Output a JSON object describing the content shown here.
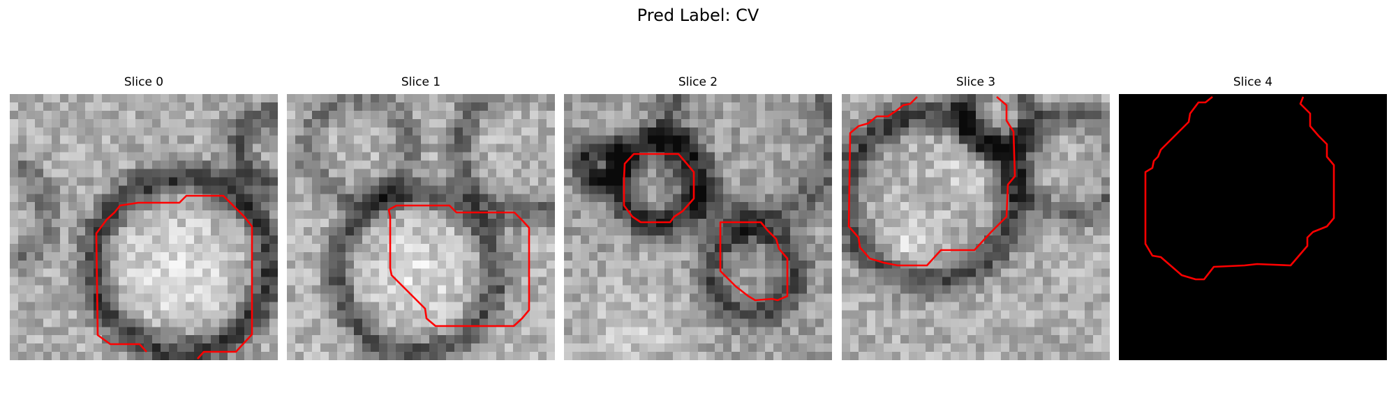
{
  "figure": {
    "title": "Pred Label: CV"
  },
  "panels": [
    {
      "label": "Slice 0"
    },
    {
      "label": "Slice 1"
    },
    {
      "label": "Slice 2"
    },
    {
      "label": "Slice 3"
    },
    {
      "label": "Slice 4"
    }
  ],
  "colors": {
    "background": "#ffffff",
    "contour": "#ff0000",
    "blank_slice": "#000000"
  }
}
